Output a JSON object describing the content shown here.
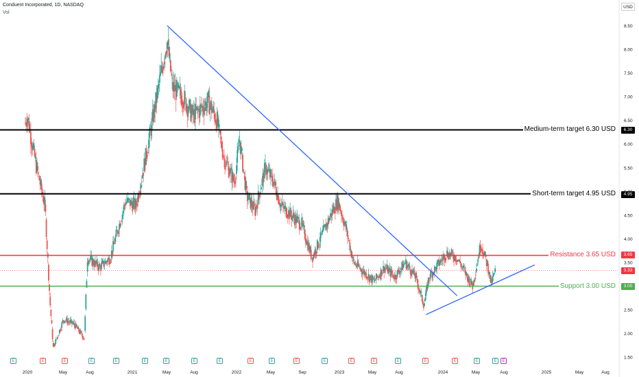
{
  "header": {
    "title": "Conduent Incorporated, 1D, NASDAQ",
    "vol_label": "Vol"
  },
  "axis": {
    "currency": "USD"
  },
  "colors": {
    "up": "#26a69a",
    "down": "#ef5350",
    "trend": "#2962ff",
    "resistance": "#f23645",
    "support": "#4caf50",
    "target": "#000000"
  },
  "levels": {
    "medium_target": {
      "label": "Medium-term target 6.30 USD",
      "value": 6.3,
      "badge": "6.30"
    },
    "short_target": {
      "label": "Short-term target 4.95 USD",
      "value": 4.95,
      "badge": "4.95"
    },
    "resistance": {
      "label": "Resistance 3.65 USD",
      "value": 3.65,
      "badge": "3.65"
    },
    "support": {
      "label": "Support 3.00 USD",
      "value": 3.0,
      "badge": "3.00"
    },
    "last_price": {
      "value": 3.33,
      "badge": "3.33"
    }
  },
  "chart_data": {
    "type": "candlestick",
    "title": "Conduent Incorporated, 1D, NASDAQ",
    "y_axis": {
      "label": "USD",
      "ylim": [
        1.4,
        8.7
      ],
      "ticks": [
        "1.50",
        "2.00",
        "2.50",
        "3.00",
        "3.50",
        "4.00",
        "4.50",
        "5.00",
        "5.50",
        "6.00",
        "6.50",
        "7.00",
        "7.50",
        "8.00",
        "8.50"
      ]
    },
    "x_axis": {
      "ticks": [
        "2020",
        "May",
        "Aug",
        "2021",
        "May",
        "Aug",
        "2022",
        "May",
        "Sep",
        "2023",
        "May",
        "Aug",
        "2024",
        "May",
        "Aug",
        "2025",
        "May",
        "Aug"
      ]
    },
    "price_path": [
      {
        "t": 2019.85,
        "price": 6.9
      },
      {
        "t": 2019.95,
        "price": 6.2
      },
      {
        "t": 2020.0,
        "price": 6.6
      },
      {
        "t": 2020.08,
        "price": 5.6
      },
      {
        "t": 2020.17,
        "price": 4.7
      },
      {
        "t": 2020.22,
        "price": 2.6
      },
      {
        "t": 2020.25,
        "price": 1.7
      },
      {
        "t": 2020.35,
        "price": 2.3
      },
      {
        "t": 2020.45,
        "price": 2.2
      },
      {
        "t": 2020.55,
        "price": 1.9
      },
      {
        "t": 2020.58,
        "price": 3.6
      },
      {
        "t": 2020.7,
        "price": 3.4
      },
      {
        "t": 2020.8,
        "price": 3.6
      },
      {
        "t": 2020.95,
        "price": 4.8
      },
      {
        "t": 2021.05,
        "price": 4.7
      },
      {
        "t": 2021.15,
        "price": 5.8
      },
      {
        "t": 2021.25,
        "price": 7.0
      },
      {
        "t": 2021.35,
        "price": 8.2
      },
      {
        "t": 2021.4,
        "price": 7.2
      },
      {
        "t": 2021.5,
        "price": 7.0
      },
      {
        "t": 2021.6,
        "price": 6.6
      },
      {
        "t": 2021.75,
        "price": 6.9
      },
      {
        "t": 2021.83,
        "price": 6.5
      },
      {
        "t": 2021.9,
        "price": 5.7
      },
      {
        "t": 2022.0,
        "price": 5.2
      },
      {
        "t": 2022.05,
        "price": 6.1
      },
      {
        "t": 2022.12,
        "price": 4.9
      },
      {
        "t": 2022.2,
        "price": 4.6
      },
      {
        "t": 2022.3,
        "price": 5.5
      },
      {
        "t": 2022.38,
        "price": 5.2
      },
      {
        "t": 2022.45,
        "price": 4.7
      },
      {
        "t": 2022.55,
        "price": 4.5
      },
      {
        "t": 2022.65,
        "price": 4.3
      },
      {
        "t": 2022.75,
        "price": 3.6
      },
      {
        "t": 2022.85,
        "price": 4.1
      },
      {
        "t": 2022.95,
        "price": 4.6
      },
      {
        "t": 2023.0,
        "price": 4.8
      },
      {
        "t": 2023.08,
        "price": 4.2
      },
      {
        "t": 2023.15,
        "price": 3.5
      },
      {
        "t": 2023.25,
        "price": 3.3
      },
      {
        "t": 2023.35,
        "price": 3.1
      },
      {
        "t": 2023.45,
        "price": 3.4
      },
      {
        "t": 2023.55,
        "price": 3.2
      },
      {
        "t": 2023.65,
        "price": 3.5
      },
      {
        "t": 2023.75,
        "price": 3.2
      },
      {
        "t": 2023.83,
        "price": 2.6
      },
      {
        "t": 2023.88,
        "price": 3.2
      },
      {
        "t": 2023.95,
        "price": 3.4
      },
      {
        "t": 2024.05,
        "price": 3.7
      },
      {
        "t": 2024.15,
        "price": 3.6
      },
      {
        "t": 2024.25,
        "price": 3.2
      },
      {
        "t": 2024.3,
        "price": 3.0
      },
      {
        "t": 2024.38,
        "price": 3.9
      },
      {
        "t": 2024.45,
        "price": 3.4
      },
      {
        "t": 2024.48,
        "price": 3.05
      },
      {
        "t": 2024.52,
        "price": 3.33
      }
    ],
    "trendlines": [
      {
        "name": "descending",
        "from": {
          "t": 2021.35,
          "price": 8.5
        },
        "to": {
          "t": 2024.15,
          "price": 2.8
        }
      },
      {
        "name": "ascending",
        "from": {
          "t": 2023.85,
          "price": 2.4
        },
        "to": {
          "t": 2024.9,
          "price": 3.45
        }
      }
    ],
    "horizontal_levels": [
      6.3,
      4.95,
      3.65,
      3.0
    ],
    "events": [
      "E",
      "E",
      "E",
      "E",
      "E",
      "E",
      "E",
      "E",
      "E",
      "E",
      "E",
      "E",
      "E",
      "E",
      "E",
      "E",
      "E",
      "E",
      "E",
      "E",
      "E",
      "E",
      "E",
      "E"
    ]
  }
}
